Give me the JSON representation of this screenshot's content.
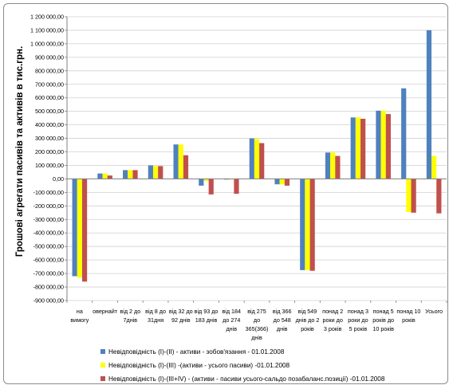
{
  "chart_data": {
    "type": "bar",
    "title": "",
    "ylabel": "Грошові агрегати  пасивів та активів в тис.грн.",
    "xlabel": "",
    "ylim": [
      -900000,
      1200000
    ],
    "y_tick_step": 100000,
    "y_tick_labels": [
      "-900 000,00",
      "-800 000,00",
      "-700 000,00",
      "-600 000,00",
      "-500 000,00",
      "-400 000,00",
      "-300 000,00",
      "-200 000,00",
      "-100 000,00",
      "0,00",
      "100 000,00",
      "200 000,00",
      "300 000,00",
      "400 000,00",
      "500 000,00",
      "600 000,00",
      "700 000,00",
      "800 000,00",
      "900 000,00",
      "1 000 000,00",
      "1 100 000,00",
      "1 200 000,00"
    ],
    "grid": true,
    "legend_position": "bottom",
    "categories": [
      [
        "на",
        "вимогу"
      ],
      [
        "овернайт"
      ],
      [
        "від 2 до",
        "7днів"
      ],
      [
        "від 8 до",
        "31дня"
      ],
      [
        "від 32 до",
        "92 днів"
      ],
      [
        "від 93 до",
        "183 днів"
      ],
      [
        "від 184",
        "до 274",
        "днів"
      ],
      [
        "від 275",
        "до",
        "365(366)",
        "днів"
      ],
      [
        "від 366",
        "до 548",
        "днів"
      ],
      [
        "від 549",
        "днів до 2",
        "років"
      ],
      [
        "понад 2",
        "роки до",
        "3 років"
      ],
      [
        "понад 3",
        "роки до",
        "5 років"
      ],
      [
        "понад 5",
        "років до",
        "10 років"
      ],
      [
        "понад 10",
        "років"
      ],
      [
        "Усього"
      ]
    ],
    "series": [
      {
        "name": "Невідповідність (І)-(ІІ) - активи - зобов'язання - 01.01.2008",
        "color": "#4f81bd",
        "values": [
          -720000,
          40000,
          65000,
          100000,
          255000,
          -50000,
          -5000,
          300000,
          -40000,
          -675000,
          195000,
          455000,
          505000,
          670000,
          1100000
        ]
      },
      {
        "name": "Невідповідність (І)-(ІІІ) -(активи - усього пасиви) -01.01.2008",
        "color": "#ffff00",
        "values": [
          -730000,
          40000,
          65000,
          95000,
          255000,
          -15000,
          -5000,
          295000,
          -40000,
          -675000,
          195000,
          455000,
          505000,
          -245000,
          170000
        ]
      },
      {
        "name": "Невідповідність (І)-(ІІІ+ІV) - (активи - пасиви усього-сальдо позабаланс.позиції) -01.01.2008",
        "color": "#c0504d",
        "values": [
          -760000,
          25000,
          65000,
          95000,
          175000,
          -115000,
          -110000,
          265000,
          -50000,
          -680000,
          170000,
          445000,
          480000,
          -250000,
          -255000
        ]
      }
    ]
  }
}
